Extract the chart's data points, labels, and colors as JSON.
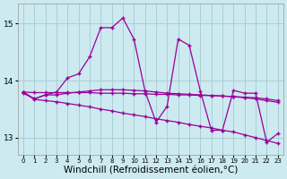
{
  "bg_color": "#cceaf0",
  "grid_color": "#aacdd6",
  "line_color": "#990099",
  "xlabel": "Windchill (Refroidissement éolien,°C)",
  "xlabel_fontsize": 7.5,
  "yticks": [
    13,
    14,
    15
  ],
  "xticks": [
    0,
    1,
    2,
    3,
    4,
    5,
    6,
    7,
    8,
    9,
    10,
    11,
    12,
    13,
    14,
    15,
    16,
    17,
    18,
    19,
    20,
    21,
    22,
    23
  ],
  "xlim": [
    -0.5,
    23.5
  ],
  "ylim": [
    12.7,
    15.35
  ],
  "series": [
    {
      "x": [
        0,
        1,
        2,
        3,
        4,
        5,
        6,
        7,
        8,
        9,
        10,
        11,
        12,
        13,
        14,
        15,
        16,
        17,
        18,
        19,
        20,
        21,
        22,
        23
      ],
      "y": [
        13.8,
        13.68,
        13.75,
        13.8,
        14.05,
        14.12,
        14.42,
        14.93,
        14.93,
        15.1,
        14.73,
        13.82,
        13.27,
        13.55,
        14.73,
        14.62,
        13.82,
        13.13,
        13.13,
        13.83,
        13.78,
        13.78,
        12.92,
        13.07
      ]
    },
    {
      "x": [
        0,
        1,
        2,
        3,
        4,
        5,
        6,
        7,
        8,
        9,
        10,
        11,
        12,
        13,
        14,
        15,
        16,
        17,
        18,
        19,
        20,
        21,
        22,
        23
      ],
      "y": [
        13.78,
        13.68,
        13.75,
        13.75,
        13.78,
        13.8,
        13.82,
        13.84,
        13.84,
        13.84,
        13.83,
        13.82,
        13.8,
        13.78,
        13.77,
        13.76,
        13.75,
        13.74,
        13.73,
        13.72,
        13.7,
        13.68,
        13.65,
        13.62
      ]
    },
    {
      "x": [
        0,
        1,
        2,
        3,
        4,
        5,
        6,
        7,
        8,
        9,
        10,
        11,
        12,
        13,
        14,
        15,
        16,
        17,
        18,
        19,
        20,
        21,
        22,
        23
      ],
      "y": [
        13.8,
        13.79,
        13.79,
        13.79,
        13.79,
        13.79,
        13.79,
        13.78,
        13.78,
        13.78,
        13.77,
        13.77,
        13.76,
        13.76,
        13.75,
        13.75,
        13.74,
        13.74,
        13.73,
        13.72,
        13.71,
        13.7,
        13.68,
        13.65
      ]
    },
    {
      "x": [
        0,
        1,
        2,
        3,
        4,
        5,
        6,
        7,
        8,
        9,
        10,
        11,
        12,
        13,
        14,
        15,
        16,
        17,
        18,
        19,
        20,
        21,
        22,
        23
      ],
      "y": [
        13.8,
        13.67,
        13.65,
        13.63,
        13.6,
        13.57,
        13.54,
        13.5,
        13.47,
        13.43,
        13.4,
        13.37,
        13.33,
        13.3,
        13.27,
        13.23,
        13.2,
        13.17,
        13.13,
        13.1,
        13.05,
        13.0,
        12.95,
        12.9
      ]
    }
  ]
}
